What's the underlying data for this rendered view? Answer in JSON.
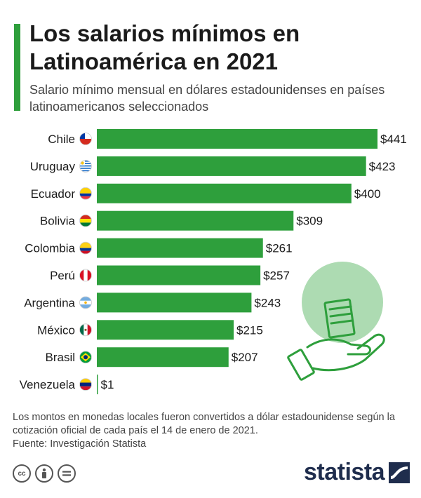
{
  "header": {
    "title": "Los salarios mínimos en Latinoamérica en 2021",
    "subtitle": "Salario mínimo mensual en dólares estadounidenses en países latinoamericanos seleccionados"
  },
  "chart_data": {
    "type": "bar",
    "orientation": "horizontal",
    "categories": [
      "Chile",
      "Uruguay",
      "Ecuador",
      "Bolivia",
      "Colombia",
      "Perú",
      "Argentina",
      "México",
      "Brasil",
      "Venezuela"
    ],
    "values": [
      441,
      423,
      400,
      309,
      261,
      257,
      243,
      215,
      207,
      1
    ],
    "value_labels": [
      "$441",
      "$423",
      "$400",
      "$309",
      "$261",
      "$257",
      "$243",
      "$215",
      "$207",
      "$1"
    ],
    "bar_color": "#2e9f3c",
    "xlim": [
      0,
      441
    ],
    "grid": false
  },
  "footer": {
    "note": "Los montos en monedas locales fueron convertidos a dólar estadounidense según la cotización oficial de cada país el 14 de enero de 2021.",
    "source": "Fuente: Investigación Statista",
    "brand": "statista",
    "license_icons": [
      "cc-icon",
      "attribution-icon",
      "no-derivatives-icon"
    ]
  },
  "colors": {
    "accent": "#2e9f3c",
    "brand": "#1f2d4d",
    "illustration": "#9fd5a4"
  }
}
